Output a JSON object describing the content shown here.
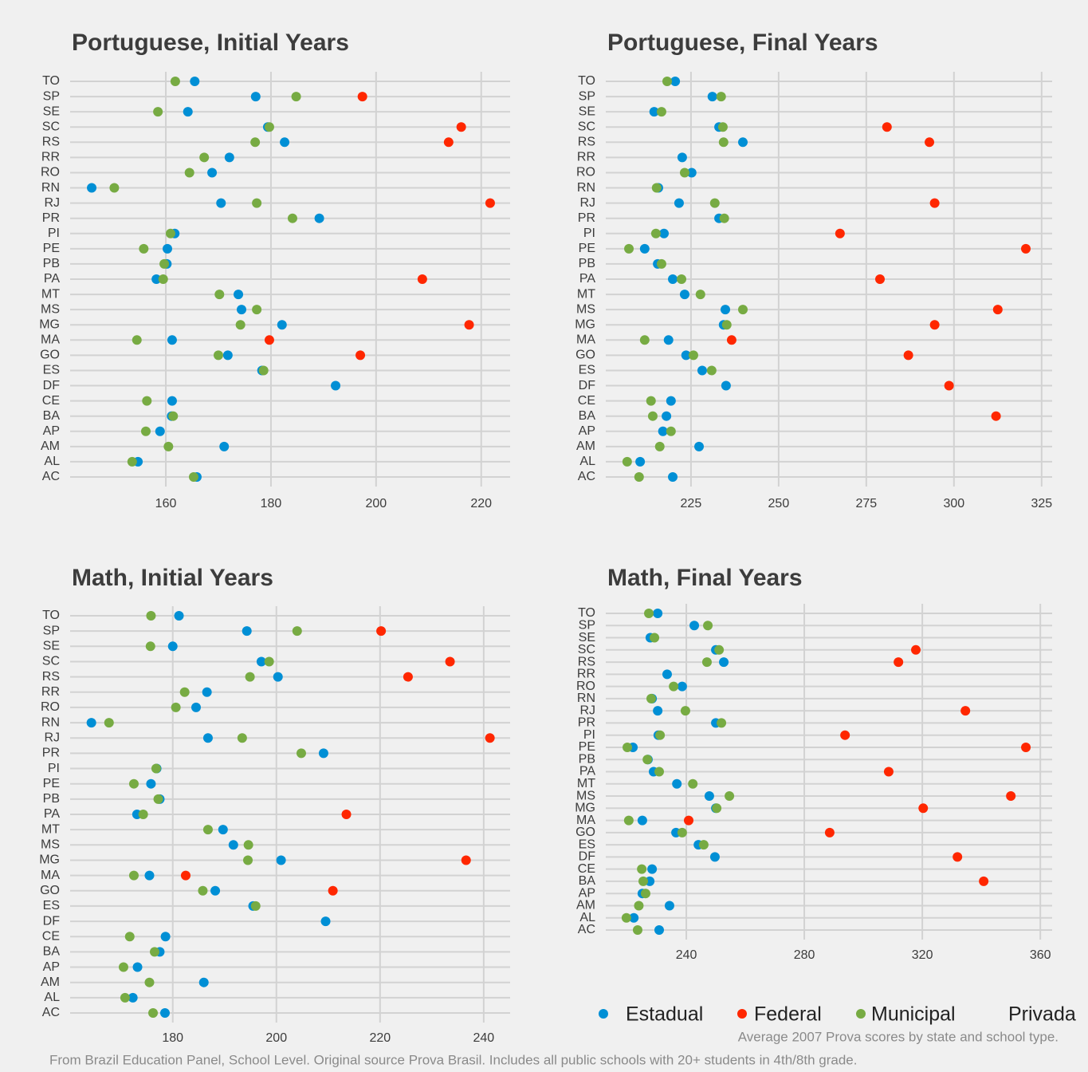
{
  "chart_data": [
    {
      "type": "dot",
      "title": "Portuguese, Initial Years",
      "categories": [
        "AC",
        "AL",
        "AM",
        "AP",
        "BA",
        "CE",
        "DF",
        "ES",
        "GO",
        "MA",
        "MG",
        "MS",
        "MT",
        "PA",
        "PB",
        "PE",
        "PI",
        "PR",
        "RJ",
        "RN",
        "RO",
        "RR",
        "RS",
        "SC",
        "SE",
        "SP",
        "TO"
      ],
      "series": [
        {
          "name": "Estadual",
          "color": "#008fd5",
          "values": [
            165.9,
            154.7,
            171.1,
            158.9,
            161.1,
            161.2,
            192.3,
            178.3,
            171.8,
            161.2,
            182.1,
            174.4,
            173.8,
            158.2,
            160.2,
            160.3,
            161.7,
            189.2,
            170.5,
            145.9,
            168.8,
            172.1,
            182.6,
            179.4,
            164.2,
            177.1,
            165.5
          ]
        },
        {
          "name": "Federal",
          "color": "#ff2700",
          "values": [
            null,
            null,
            null,
            null,
            null,
            null,
            null,
            null,
            197.0,
            179.7,
            217.7,
            null,
            null,
            208.8,
            null,
            null,
            null,
            null,
            221.7,
            null,
            null,
            null,
            213.8,
            216.2,
            null,
            197.4,
            null
          ]
        },
        {
          "name": "Municipal",
          "color": "#77ab43",
          "values": [
            165.3,
            153.6,
            160.5,
            156.2,
            161.4,
            156.4,
            null,
            178.6,
            170.0,
            154.5,
            174.2,
            177.3,
            170.2,
            159.5,
            159.7,
            155.8,
            160.9,
            184.1,
            177.3,
            150.2,
            164.5,
            167.3,
            177.0,
            179.7,
            158.5,
            184.8,
            161.8
          ]
        },
        {
          "name": "Privada",
          "color": null,
          "values": [
            null,
            null,
            null,
            null,
            null,
            null,
            null,
            null,
            null,
            null,
            null,
            null,
            null,
            null,
            null,
            null,
            null,
            null,
            null,
            null,
            null,
            null,
            null,
            null,
            null,
            null,
            null
          ]
        }
      ],
      "xlim": [
        141.8,
        225.5
      ],
      "xticks": [
        160,
        180,
        200,
        220
      ],
      "grid": true
    },
    {
      "type": "dot",
      "title": "Portuguese, Final Years",
      "categories": [
        "AC",
        "AL",
        "AM",
        "AP",
        "BA",
        "CE",
        "DF",
        "ES",
        "GO",
        "MA",
        "MG",
        "MS",
        "MT",
        "PA",
        "PB",
        "PE",
        "PI",
        "PR",
        "RJ",
        "RN",
        "RO",
        "RR",
        "RS",
        "SC",
        "SE",
        "SP",
        "TO"
      ],
      "series": [
        {
          "name": "Estadual",
          "color": "#008fd5",
          "values": [
            219.8,
            210.5,
            227.3,
            217.0,
            218.0,
            219.3,
            235.0,
            228.2,
            223.6,
            218.6,
            234.3,
            234.8,
            223.2,
            219.8,
            215.5,
            211.8,
            217.3,
            233.0,
            221.6,
            215.7,
            225.2,
            222.5,
            239.8,
            233.0,
            214.5,
            231.1,
            220.5
          ]
        },
        {
          "name": "Federal",
          "color": "#ff2700",
          "values": [
            null,
            null,
            null,
            null,
            312.0,
            null,
            298.6,
            null,
            287.0,
            236.6,
            294.5,
            312.5,
            null,
            278.9,
            null,
            320.5,
            267.5,
            null,
            294.5,
            null,
            null,
            null,
            293.0,
            280.9,
            null,
            null,
            null
          ]
        },
        {
          "name": "Municipal",
          "color": "#77ab43",
          "values": [
            210.2,
            206.8,
            216.1,
            219.3,
            214.1,
            213.6,
            null,
            230.9,
            225.7,
            211.8,
            235.2,
            239.8,
            227.7,
            222.3,
            216.6,
            207.3,
            215.0,
            234.5,
            231.8,
            215.2,
            223.2,
            null,
            234.3,
            234.1,
            216.6,
            233.6,
            218.2
          ]
        },
        {
          "name": "Privada",
          "color": null,
          "values": [
            null,
            null,
            null,
            null,
            null,
            null,
            null,
            null,
            null,
            null,
            null,
            null,
            null,
            null,
            null,
            null,
            null,
            null,
            null,
            null,
            null,
            null,
            null,
            null,
            null,
            null,
            null
          ]
        }
      ],
      "xlim": [
        200.7,
        328
      ],
      "xticks": [
        225,
        250,
        275,
        300,
        325
      ],
      "grid": true
    },
    {
      "type": "dot",
      "title": "Math, Initial Years",
      "categories": [
        "AC",
        "AL",
        "AM",
        "AP",
        "BA",
        "CE",
        "DF",
        "ES",
        "GO",
        "MA",
        "MG",
        "MS",
        "MT",
        "PA",
        "PB",
        "PE",
        "PI",
        "PR",
        "RJ",
        "RN",
        "RO",
        "RR",
        "RS",
        "SC",
        "SE",
        "SP",
        "TO"
      ],
      "series": [
        {
          "name": "Estadual",
          "color": "#008fd5",
          "values": [
            178.5,
            172.3,
            186.0,
            173.2,
            177.5,
            178.6,
            209.5,
            195.5,
            188.2,
            175.5,
            200.9,
            191.7,
            189.7,
            173.1,
            177.5,
            175.8,
            176.9,
            209.1,
            186.8,
            164.3,
            184.5,
            186.6,
            200.3,
            197.1,
            180.0,
            194.3,
            181.2
          ]
        },
        {
          "name": "Federal",
          "color": "#ff2700",
          "values": [
            null,
            null,
            null,
            null,
            null,
            null,
            null,
            null,
            210.9,
            182.5,
            236.6,
            null,
            null,
            213.5,
            null,
            null,
            null,
            null,
            241.2,
            null,
            null,
            null,
            225.4,
            233.5,
            null,
            220.2,
            null
          ]
        },
        {
          "name": "Municipal",
          "color": "#77ab43",
          "values": [
            176.2,
            170.8,
            175.5,
            170.5,
            176.5,
            171.7,
            null,
            196.0,
            185.8,
            172.5,
            194.5,
            194.6,
            186.8,
            174.3,
            177.2,
            172.5,
            176.8,
            204.8,
            193.4,
            167.7,
            180.6,
            182.3,
            194.9,
            198.6,
            175.7,
            204.0,
            175.8
          ]
        },
        {
          "name": "Privada",
          "color": null,
          "values": [
            null,
            null,
            null,
            null,
            null,
            null,
            null,
            null,
            null,
            null,
            null,
            null,
            null,
            null,
            null,
            null,
            null,
            null,
            null,
            null,
            null,
            null,
            null,
            null,
            null,
            null,
            null
          ]
        }
      ],
      "xlim": [
        160.2,
        245.1
      ],
      "xticks": [
        180,
        200,
        220,
        240
      ],
      "grid": true
    },
    {
      "type": "dot",
      "title": "Math, Final Years",
      "categories": [
        "AC",
        "AL",
        "AM",
        "AP",
        "BA",
        "CE",
        "DF",
        "ES",
        "GO",
        "MA",
        "MG",
        "MS",
        "MT",
        "PA",
        "PB",
        "PE",
        "PI",
        "PR",
        "RJ",
        "RN",
        "RO",
        "RR",
        "RS",
        "SC",
        "SE",
        "SP",
        "TO"
      ],
      "series": [
        {
          "name": "Estadual",
          "color": "#008fd5",
          "values": [
            230.8,
            222.2,
            234.3,
            225.1,
            227.6,
            228.4,
            249.7,
            244.1,
            236.5,
            225.1,
            250.0,
            247.8,
            236.8,
            228.9,
            227.0,
            221.9,
            230.5,
            250.0,
            230.3,
            228.4,
            238.6,
            233.5,
            252.7,
            250.0,
            227.8,
            242.7,
            230.3
          ]
        },
        {
          "name": "Federal",
          "color": "#ff2700",
          "values": [
            null,
            null,
            null,
            null,
            340.8,
            null,
            331.9,
            null,
            288.6,
            240.8,
            320.3,
            350.0,
            null,
            308.6,
            null,
            355.1,
            293.8,
            null,
            334.6,
            null,
            null,
            null,
            311.9,
            317.8,
            null,
            null,
            null
          ]
        },
        {
          "name": "Municipal",
          "color": "#77ab43",
          "values": [
            223.5,
            219.7,
            223.9,
            226.2,
            225.4,
            224.9,
            null,
            245.9,
            238.6,
            220.5,
            250.3,
            254.6,
            242.2,
            230.8,
            226.8,
            220.0,
            231.1,
            251.9,
            239.7,
            228.1,
            235.7,
            null,
            247.0,
            251.1,
            229.2,
            247.3,
            227.3
          ]
        },
        {
          "name": "Privada",
          "color": null,
          "values": [
            null,
            null,
            null,
            null,
            null,
            null,
            null,
            null,
            null,
            null,
            null,
            null,
            null,
            null,
            null,
            null,
            null,
            null,
            null,
            null,
            null,
            null,
            null,
            null,
            null,
            null,
            null
          ]
        }
      ],
      "xlim": [
        212.7,
        364
      ],
      "xticks": [
        240,
        280,
        320,
        360
      ],
      "grid": true
    }
  ],
  "legend_position": "bottom-right",
  "caption": "Average 2007 Prova scores by state and school type.",
  "source": "From Brazil Education Panel, School Level. Original source Prova Brasil.  Includes all public schools with 20+ students in 4th/8th grade."
}
